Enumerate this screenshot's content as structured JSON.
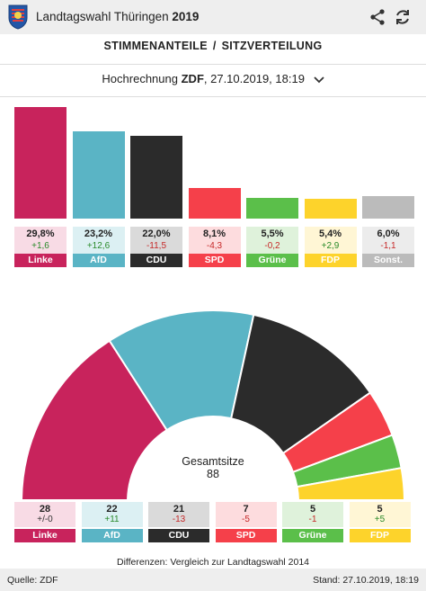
{
  "header": {
    "title_prefix": "Landtagswahl Thüringen",
    "title_year": "2019",
    "icons": [
      "crest-icon",
      "share-icon",
      "reload-icon"
    ]
  },
  "tabs": {
    "votes": "STIMMENANTEILE",
    "separator": "/",
    "seats": "SITZVERTEILUNG"
  },
  "forecast": {
    "prefix": "Hochrechnung",
    "source": "ZDF",
    "datetime": ", 27.10.2019, 18:19"
  },
  "chart_data": [
    {
      "type": "bar",
      "categories": [
        "Linke",
        "AfD",
        "CDU",
        "SPD",
        "Grüne",
        "FDP",
        "Sonst."
      ],
      "values": [
        29.8,
        23.2,
        22.0,
        8.1,
        5.5,
        5.4,
        6.0
      ],
      "value_labels": [
        "29,8%",
        "23,2%",
        "22,0%",
        "8,1%",
        "5,5%",
        "5,4%",
        "6,0%"
      ],
      "diff_labels": [
        "+1,6",
        "+12,6",
        "-11,5",
        "-4,3",
        "-0,2",
        "+2,9",
        "-1,1"
      ],
      "colors": [
        "#c8235c",
        "#5ab4c5",
        "#2b2b2b",
        "#f5404a",
        "#5bbf4a",
        "#fdd32b",
        "#bbbbbb"
      ],
      "box_colors": [
        "#f8dbe5",
        "#dcf0f3",
        "#dadada",
        "#fddcde",
        "#dff2db",
        "#fff6d5",
        "#ececec"
      ]
    },
    {
      "type": "pie",
      "subtype": "half-donut",
      "categories": [
        "Linke",
        "AfD",
        "CDU",
        "SPD",
        "Grüne",
        "FDP"
      ],
      "values": [
        28,
        22,
        21,
        7,
        5,
        5
      ],
      "diff_labels": [
        "+/-0",
        "+11",
        "-13",
        "-5",
        "-1",
        "+5"
      ],
      "colors": [
        "#c8235c",
        "#5ab4c5",
        "#2b2b2b",
        "#f5404a",
        "#5bbf4a",
        "#fdd32b"
      ],
      "box_colors": [
        "#f8dbe5",
        "#dcf0f3",
        "#dadada",
        "#fddcde",
        "#dff2db",
        "#fff6d5"
      ],
      "center_label": "Gesamtsitze",
      "center_value": "88"
    }
  ],
  "note": "Differenzen: Vergleich zur Landtagswahl 2014",
  "footer": {
    "source": "Quelle: ZDF",
    "stand": "Stand: 27.10.2019, 18:19"
  }
}
